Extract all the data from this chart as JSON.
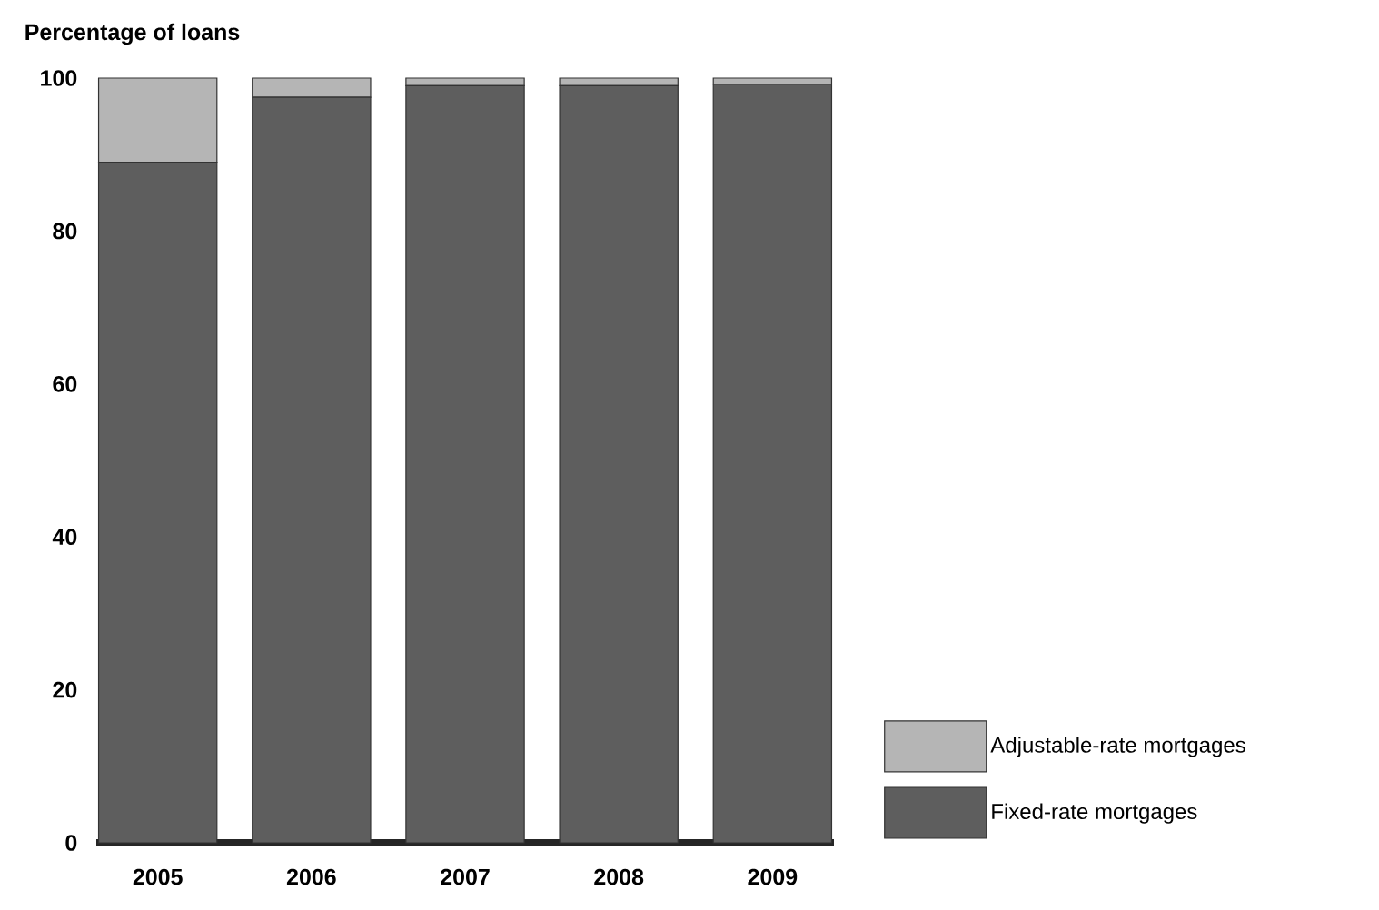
{
  "chart_data": {
    "type": "bar",
    "stacked": true,
    "ylabel": "Percentage of loans",
    "categories": [
      "2005",
      "2006",
      "2007",
      "2008",
      "2009"
    ],
    "series": [
      {
        "name": "Fixed-rate mortgages",
        "color": "#5e5e5e",
        "values": [
          89,
          97.5,
          99,
          99,
          99.2
        ]
      },
      {
        "name": "Adjustable-rate mortgages",
        "color": "#b5b5b5",
        "values": [
          11,
          2.5,
          1,
          1,
          0.8
        ]
      }
    ],
    "ylim": [
      0,
      100
    ],
    "yticks": [
      0,
      20,
      40,
      60,
      80,
      100
    ],
    "legend": "bottom right",
    "grid": false
  }
}
